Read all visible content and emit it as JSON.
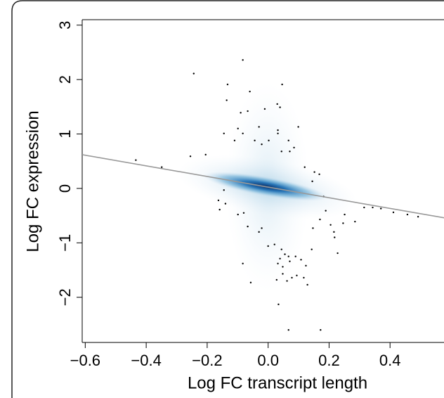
{
  "chart_data": {
    "type": "scatter",
    "xlabel": "Log FC transcript length",
    "ylabel": "Log FC expression",
    "xlim": [
      -0.61,
      0.577
    ],
    "ylim": [
      -2.83,
      3.1
    ],
    "xticks": [
      {
        "value": -0.6,
        "label": "−0.6"
      },
      {
        "value": -0.4,
        "label": "−0.4"
      },
      {
        "value": -0.2,
        "label": "−0.2"
      },
      {
        "value": 0,
        "label": "0.0"
      },
      0.2,
      0.4
    ],
    "yticks": [
      {
        "value": -2,
        "label": "−2"
      },
      {
        "value": -1,
        "label": "−1"
      },
      0,
      1,
      2,
      3
    ],
    "color": "#000000",
    "x": [
      -0.434,
      -0.349,
      -0.244,
      -0.255,
      -0.205,
      -0.133,
      -0.083,
      -0.136,
      -0.06,
      -0.09,
      -0.067,
      -0.099,
      -0.083,
      -0.11,
      -0.145,
      -0.044,
      -0.03,
      -0.021,
      -0.011,
      0.032,
      0.032,
      0.046,
      0.03,
      0.039,
      0.099,
      0.067,
      0.085,
      0.071,
      0.044,
      0.002,
      0.12,
      0.152,
      0.168,
      0.145,
      -0.163,
      -0.145,
      -0.14,
      -0.159,
      -0.099,
      -0.08,
      -0.067,
      -0.03,
      -0.021,
      0.0,
      -0.083,
      -0.057,
      0.021,
      0.044,
      0.055,
      0.067,
      0.039,
      0.032,
      0.048,
      0.071,
      0.09,
      0.108,
      0.124,
      0.028,
      0.048,
      0.062,
      0.078,
      0.094,
      0.117,
      0.129,
      0.034,
      0.067,
      0.172,
      0.143,
      0.147,
      0.17,
      0.189,
      0.205,
      0.218,
      0.246,
      0.228,
      0.216,
      0.251,
      0.285,
      0.315,
      0.343,
      0.37,
      0.411,
      0.457,
      0.492,
      0.182
    ],
    "values": [
      0.52,
      0.39,
      2.11,
      0.59,
      0.62,
      1.91,
      2.36,
      1.62,
      1.78,
      1.39,
      1.42,
      1.1,
      1.01,
      0.88,
      1.01,
      0.88,
      1.13,
      0.81,
      1.46,
      1.07,
      1.01,
      1.91,
      1.55,
      1.49,
      1.13,
      0.88,
      0.75,
      0.68,
      0.68,
      0.88,
      0.39,
      0.3,
      0.26,
      0.13,
      -0.22,
      -0.03,
      -0.28,
      -0.39,
      -0.48,
      -0.45,
      -0.7,
      -0.8,
      -0.73,
      -1.06,
      -1.38,
      -1.73,
      -1.03,
      -1.12,
      -1.21,
      -1.25,
      -1.29,
      -1.38,
      -1.44,
      -1.34,
      -1.25,
      -1.31,
      -1.42,
      -1.68,
      -1.57,
      -1.7,
      -1.64,
      -1.6,
      -1.64,
      -1.77,
      -2.13,
      -2.6,
      -2.6,
      -1.12,
      -0.73,
      -0.57,
      -0.41,
      -0.67,
      -0.9,
      -0.64,
      -1.19,
      -0.8,
      -0.48,
      -0.61,
      -0.35,
      -0.35,
      -0.37,
      -0.44,
      -0.48,
      -0.52,
      -0.15
    ],
    "fit_line": {
      "x": [
        -0.61,
        0.577
      ],
      "y": [
        0.62,
        -0.54
      ],
      "color": "#999999"
    }
  }
}
